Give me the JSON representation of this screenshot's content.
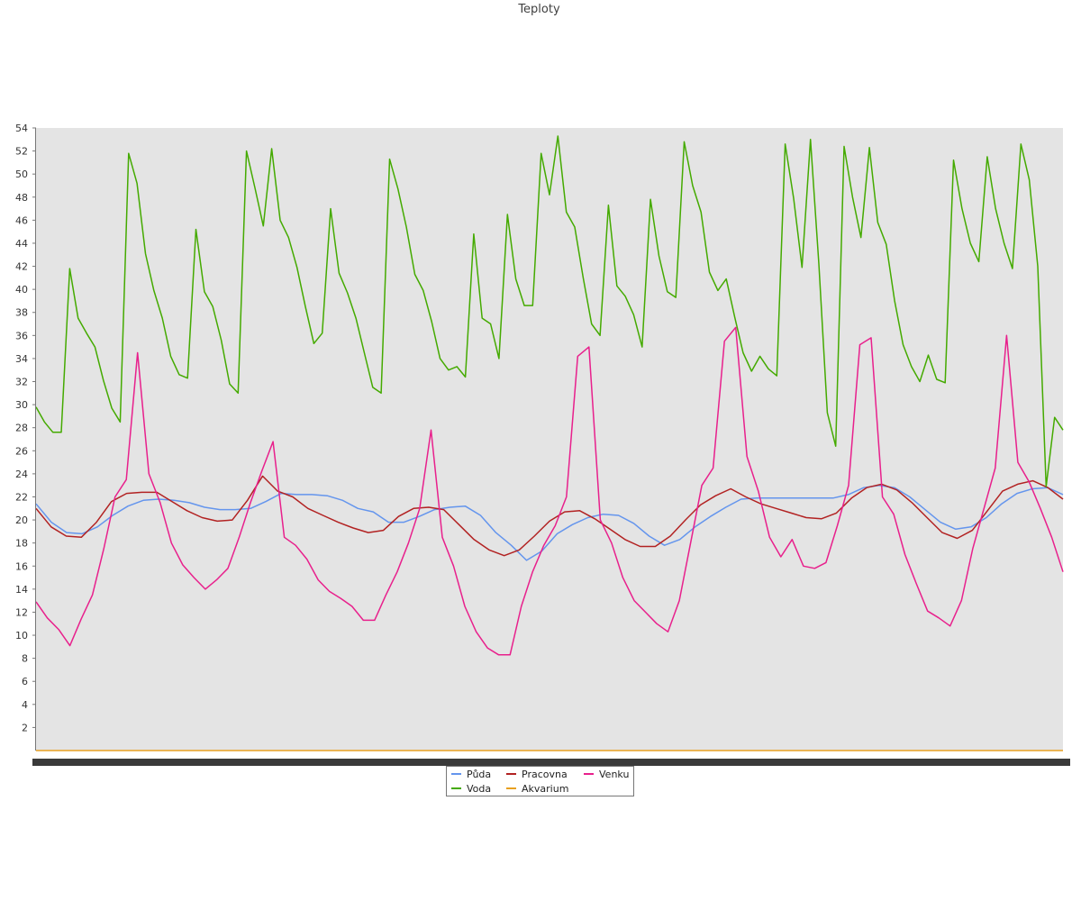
{
  "chart_data": {
    "type": "line",
    "title": "Teploty",
    "xlabel": "",
    "ylabel": "",
    "ylim": [
      0,
      54
    ],
    "yticks": [
      2,
      4,
      6,
      8,
      10,
      12,
      14,
      16,
      18,
      20,
      22,
      24,
      26,
      28,
      30,
      32,
      34,
      36,
      38,
      40,
      42,
      44,
      46,
      48,
      50,
      52,
      54
    ],
    "x_tick_labels_legible": false,
    "grid": false,
    "legend": "bottom-center",
    "x_points": 100,
    "series": [
      {
        "name": "Půda",
        "color": "#6495ED",
        "values": [
          21.4,
          19.8,
          18.9,
          18.8,
          19.4,
          20.4,
          21.2,
          21.7,
          21.8,
          21.7,
          21.5,
          21.1,
          20.9,
          20.9,
          21.0,
          21.6,
          22.3,
          22.2,
          22.2,
          22.1,
          21.7,
          21.0,
          20.7,
          19.8,
          19.8,
          20.3,
          20.9,
          21.1,
          21.2,
          20.4,
          18.9,
          17.8,
          16.5,
          17.3,
          18.8,
          19.6,
          20.2,
          20.5,
          20.4,
          19.7,
          18.6,
          17.8,
          18.3,
          19.4,
          20.3,
          21.1,
          21.8,
          21.9,
          21.9,
          21.9,
          21.9,
          21.9,
          21.9,
          22.2,
          22.8,
          23.0,
          22.8,
          22.0,
          20.9,
          19.8,
          19.2,
          19.4,
          20.2,
          21.4,
          22.3,
          22.7,
          22.8,
          22.2
        ]
      },
      {
        "name": "Voda",
        "color": "#44AA00",
        "values": [
          29.8,
          28.5,
          27.6,
          27.6,
          41.8,
          37.5,
          36.2,
          35.0,
          32.1,
          29.7,
          28.5,
          51.8,
          49.2,
          43.1,
          39.9,
          37.5,
          34.2,
          32.6,
          32.3,
          45.2,
          39.8,
          38.5,
          35.6,
          31.8,
          31.0,
          52.0,
          48.8,
          45.5,
          52.2,
          46.0,
          44.5,
          41.9,
          38.5,
          35.3,
          36.2,
          47.0,
          41.4,
          39.7,
          37.5,
          34.5,
          31.5,
          31.0,
          51.3,
          48.7,
          45.4,
          41.3,
          39.9,
          37.2,
          34.0,
          33.0,
          33.3,
          32.4,
          44.8,
          37.5,
          37.0,
          34.0,
          46.5,
          40.9,
          38.6,
          38.6,
          51.8,
          48.2,
          53.3,
          46.7,
          45.4,
          41.0,
          37.0,
          36.0,
          47.3,
          40.3,
          39.4,
          37.8,
          35.0,
          47.8,
          42.9,
          39.8,
          39.3,
          52.8,
          49.0,
          46.7,
          41.5,
          39.9,
          40.9,
          37.6,
          34.5,
          32.9,
          34.2,
          33.1,
          32.5,
          52.6,
          47.9,
          41.9,
          53.0,
          42.2,
          29.3,
          26.4,
          52.4,
          48.0,
          44.5,
          52.3,
          45.8,
          43.9,
          39.0,
          35.2,
          33.3,
          32.0,
          34.3,
          32.2,
          31.9,
          51.2,
          47.0,
          44.0,
          42.4,
          51.5,
          47.0,
          44.0,
          41.8,
          52.6,
          49.5,
          42.0,
          22.9,
          28.9,
          27.8
        ]
      },
      {
        "name": "Pracovna",
        "color": "#B22222",
        "values": [
          21.0,
          19.4,
          18.6,
          18.5,
          19.8,
          21.6,
          22.3,
          22.4,
          22.4,
          21.6,
          20.8,
          20.2,
          19.9,
          20.0,
          21.7,
          23.8,
          22.5,
          22.0,
          21.0,
          20.4,
          19.8,
          19.3,
          18.9,
          19.1,
          20.3,
          21.0,
          21.1,
          20.9,
          19.6,
          18.3,
          17.4,
          16.9,
          17.4,
          18.6,
          19.9,
          20.7,
          20.8,
          20.1,
          19.2,
          18.3,
          17.7,
          17.7,
          18.6,
          20.0,
          21.3,
          22.1,
          22.7,
          22.0,
          21.4,
          21.0,
          20.6,
          20.2,
          20.1,
          20.6,
          21.9,
          22.8,
          23.1,
          22.6,
          21.5,
          20.2,
          18.9,
          18.4,
          19.1,
          20.8,
          22.5,
          23.1,
          23.4,
          22.8,
          21.8
        ]
      },
      {
        "name": "Akvarium",
        "color": "#E8A020",
        "values": [
          0,
          0
        ]
      },
      {
        "name": "Venku",
        "color": "#E8208C",
        "values": [
          12.9,
          11.5,
          10.5,
          9.1,
          11.4,
          13.5,
          17.5,
          22.0,
          23.5,
          34.5,
          24.0,
          21.5,
          18.0,
          16.1,
          15.0,
          14.0,
          14.8,
          15.8,
          18.5,
          21.5,
          24.2,
          26.8,
          18.5,
          17.8,
          16.6,
          14.8,
          13.8,
          13.2,
          12.5,
          11.3,
          11.3,
          13.5,
          15.5,
          18.0,
          21.0,
          27.8,
          18.5,
          16.0,
          12.5,
          10.3,
          8.9,
          8.3,
          8.3,
          12.5,
          15.5,
          17.8,
          19.5,
          22.0,
          34.2,
          35.0,
          20.0,
          18.0,
          15.0,
          13.0,
          12.0,
          11.0,
          10.3,
          13.0,
          18.0,
          23.0,
          24.5,
          35.5,
          36.7,
          25.5,
          22.5,
          18.5,
          16.8,
          18.3,
          16.0,
          15.8,
          16.3,
          19.5,
          23.0,
          35.2,
          35.8,
          22.0,
          20.5,
          17.0,
          14.5,
          12.1,
          11.5,
          10.8,
          13.0,
          17.5,
          21.0,
          24.5,
          36.0,
          25.0,
          23.3,
          21.0,
          18.5,
          15.5
        ]
      }
    ]
  }
}
